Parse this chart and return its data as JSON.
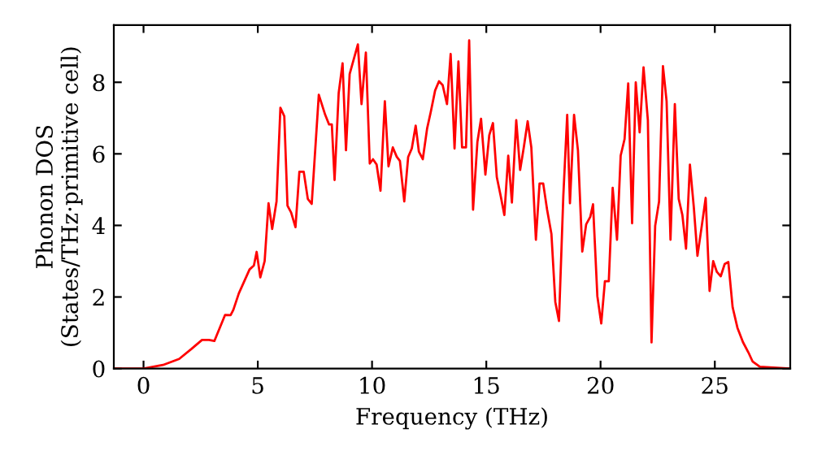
{
  "chart_data": {
    "type": "line",
    "xlabel": "Frequency (THz)",
    "ylabel": "Phonon DOS\n(States/THz·primitive cell)",
    "xlim": [
      -1.3,
      28.3
    ],
    "ylim": [
      0,
      9.6
    ],
    "xticks": [
      0,
      5,
      10,
      15,
      20,
      25
    ],
    "yticks": [
      0,
      2,
      4,
      6,
      8
    ],
    "grid": false,
    "marker": "none",
    "line_style": "solid",
    "series": [
      {
        "color": "#ff0000",
        "x": [
          -1.3,
          0.0,
          0.85,
          1.56,
          2.1,
          2.56,
          2.86,
          3.1,
          3.57,
          3.81,
          3.93,
          4.17,
          4.64,
          4.83,
          4.95,
          5.11,
          5.3,
          5.47,
          5.63,
          5.82,
          5.99,
          6.16,
          6.3,
          6.46,
          6.65,
          6.82,
          7.01,
          7.19,
          7.36,
          7.67,
          7.95,
          8.12,
          8.24,
          8.36,
          8.54,
          8.71,
          8.86,
          9.02,
          9.38,
          9.54,
          9.73,
          9.9,
          10.04,
          10.2,
          10.37,
          10.56,
          10.72,
          10.91,
          11.08,
          11.22,
          11.41,
          11.58,
          11.74,
          11.91,
          12.05,
          12.22,
          12.41,
          12.57,
          12.76,
          12.93,
          13.09,
          13.28,
          13.44,
          13.61,
          13.78,
          13.94,
          14.11,
          14.25,
          14.42,
          14.61,
          14.77,
          14.96,
          15.13,
          15.29,
          15.46,
          15.63,
          15.79,
          15.96,
          16.12,
          16.31,
          16.48,
          16.64,
          16.81,
          16.97,
          17.17,
          17.33,
          17.49,
          17.66,
          17.85,
          18.02,
          18.18,
          18.37,
          18.54,
          18.66,
          18.84,
          19.01,
          19.2,
          19.37,
          19.55,
          19.67,
          19.86,
          20.03,
          20.19,
          20.36,
          20.53,
          20.72,
          20.88,
          21.05,
          21.21,
          21.38,
          21.54,
          21.71,
          21.88,
          22.07,
          22.23,
          22.39,
          22.56,
          22.73,
          22.89,
          23.06,
          23.25,
          23.42,
          23.58,
          23.74,
          23.91,
          24.08,
          24.24,
          24.43,
          24.6,
          24.77,
          24.93,
          25.09,
          25.26,
          25.43,
          25.59,
          25.78,
          25.99,
          26.23,
          26.47,
          26.65,
          26.97,
          28.3
        ],
        "values": [
          0.0,
          0.0,
          0.1,
          0.27,
          0.55,
          0.8,
          0.8,
          0.77,
          1.5,
          1.49,
          1.64,
          2.1,
          2.77,
          2.88,
          3.26,
          2.55,
          3.0,
          4.62,
          3.9,
          4.67,
          7.29,
          7.05,
          4.55,
          4.36,
          3.95,
          5.5,
          5.5,
          4.74,
          4.6,
          7.65,
          7.09,
          6.82,
          6.82,
          5.27,
          7.7,
          8.53,
          6.1,
          8.23,
          9.06,
          7.39,
          8.83,
          5.73,
          5.85,
          5.7,
          4.97,
          7.47,
          5.65,
          6.18,
          5.92,
          5.8,
          4.67,
          5.91,
          6.15,
          6.79,
          6.06,
          5.85,
          6.71,
          7.17,
          7.77,
          8.03,
          7.92,
          7.39,
          8.79,
          6.15,
          8.58,
          6.18,
          6.18,
          9.17,
          4.44,
          6.33,
          6.98,
          5.42,
          6.52,
          6.86,
          5.35,
          4.82,
          4.29,
          5.95,
          4.64,
          6.94,
          5.55,
          6.18,
          6.91,
          6.18,
          3.6,
          5.17,
          5.17,
          4.44,
          3.76,
          1.86,
          1.33,
          4.82,
          7.09,
          4.62,
          7.09,
          6.1,
          3.27,
          4.03,
          4.24,
          4.59,
          2.02,
          1.26,
          2.44,
          2.44,
          5.05,
          3.6,
          5.95,
          6.41,
          7.97,
          4.06,
          8.0,
          6.6,
          8.42,
          6.94,
          0.73,
          3.99,
          4.67,
          8.45,
          7.47,
          3.6,
          7.39,
          4.74,
          4.29,
          3.35,
          5.7,
          4.51,
          3.15,
          3.99,
          4.77,
          2.17,
          3.0,
          2.7,
          2.58,
          2.92,
          2.98,
          1.71,
          1.14,
          0.74,
          0.45,
          0.2,
          0.05,
          0.0
        ]
      }
    ]
  }
}
